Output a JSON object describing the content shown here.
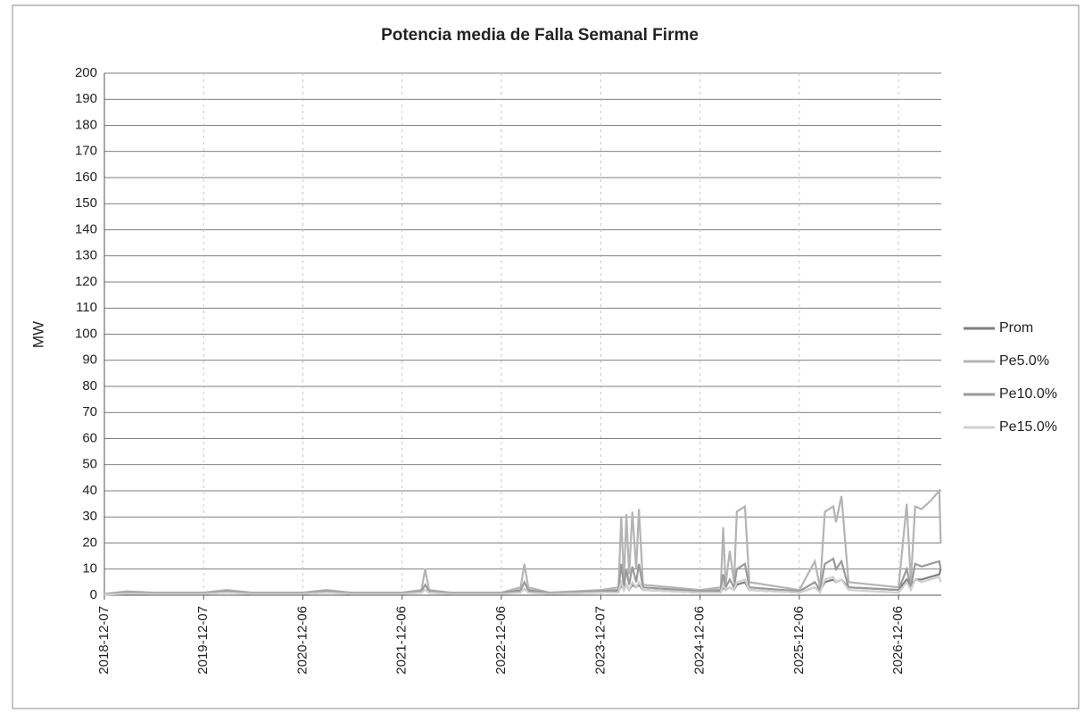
{
  "chart_data": {
    "type": "line",
    "title": "Potencia media de Falla Semanal Firme",
    "y_label": "MW",
    "x": [
      "2018-12-07",
      "2019-03-01",
      "2019-06-01",
      "2019-12-07",
      "2020-03-01",
      "2020-06-01",
      "2020-12-06",
      "2021-03-01",
      "2021-06-01",
      "2021-12-06",
      "2022-02-15",
      "2022-03-01",
      "2022-03-15",
      "2022-06-01",
      "2022-12-06",
      "2023-02-15",
      "2023-03-01",
      "2023-03-15",
      "2023-06-01",
      "2023-12-07",
      "2024-02-10",
      "2024-02-20",
      "2024-03-01",
      "2024-03-10",
      "2024-03-20",
      "2024-04-01",
      "2024-04-15",
      "2024-04-25",
      "2024-05-10",
      "2024-12-06",
      "2025-02-20",
      "2025-03-01",
      "2025-03-10",
      "2025-03-25",
      "2025-04-10",
      "2025-04-20",
      "2025-05-20",
      "2025-06-05",
      "2025-12-06",
      "2026-02-01",
      "2026-02-20",
      "2026-03-10",
      "2026-04-10",
      "2026-04-20",
      "2026-05-10",
      "2026-06-05",
      "2026-12-06",
      "2027-01-05",
      "2027-01-20",
      "2027-02-05",
      "2027-03-01",
      "2027-04-01",
      "2027-05-05",
      "2027-05-10"
    ],
    "series": [
      {
        "name": "Prom",
        "color": "#7f7f7f",
        "values": [
          0.4,
          0.8,
          0.6,
          0.6,
          1,
          0.6,
          0.6,
          1,
          0.6,
          0.6,
          1,
          2,
          1,
          0.6,
          0.6,
          1.2,
          2.5,
          1.2,
          0.6,
          1,
          1.2,
          4,
          2,
          4,
          2,
          4,
          3,
          4,
          2,
          1,
          1.2,
          3,
          2,
          3,
          2,
          4,
          5,
          2,
          1,
          3,
          1.5,
          5,
          6,
          5,
          6,
          3,
          2,
          6,
          3,
          6,
          6,
          7,
          8,
          10
        ]
      },
      {
        "name": "Pe5.0%",
        "color": "#b4b4b4",
        "values": [
          0.5,
          1.5,
          1,
          1,
          2,
          1,
          1,
          2,
          1,
          1,
          2,
          10,
          2,
          1,
          1,
          3,
          12,
          3,
          1,
          2,
          3,
          30,
          5,
          31,
          8,
          32,
          10,
          33,
          4,
          2,
          3,
          26,
          4,
          17,
          5,
          32,
          34,
          5,
          2,
          13,
          3,
          32,
          34,
          28,
          38,
          5,
          3,
          35,
          5,
          34,
          33,
          36,
          40,
          20
        ]
      },
      {
        "name": "Pe10.0%",
        "color": "#9a9a9a",
        "values": [
          0.3,
          1,
          0.8,
          0.8,
          1.5,
          0.8,
          0.8,
          1.5,
          0.8,
          0.8,
          1.5,
          4,
          1.5,
          0.8,
          0.8,
          2,
          5,
          2,
          0.8,
          1.5,
          2,
          12,
          3,
          10,
          4,
          11,
          5,
          12,
          3,
          1.5,
          2,
          8,
          3,
          6,
          3,
          10,
          12,
          3,
          1.5,
          5,
          2,
          12,
          14,
          10,
          13,
          3,
          2,
          10,
          3,
          12,
          11,
          12,
          13,
          10
        ]
      },
      {
        "name": "Pe15.0%",
        "color": "#d0d0d0",
        "values": [
          0.2,
          0.6,
          0.5,
          0.5,
          1,
          0.5,
          0.5,
          1,
          0.5,
          0.5,
          1,
          2,
          1,
          0.5,
          0.5,
          1,
          2.5,
          1,
          0.5,
          1,
          1,
          5,
          2,
          4,
          2,
          5,
          3,
          5,
          2,
          1,
          1,
          4,
          2,
          3,
          2,
          5,
          6,
          2,
          1,
          3,
          1,
          6,
          7,
          5,
          6,
          2,
          1,
          5,
          2,
          6,
          5,
          6,
          7,
          5
        ]
      }
    ],
    "xlim": [
      "2018-12-07",
      "2027-05-12"
    ],
    "xticks": [
      "2018-12-07",
      "2019-12-07",
      "2020-12-06",
      "2021-12-06",
      "2022-12-06",
      "2023-12-07",
      "2024-12-06",
      "2025-12-06",
      "2026-12-06"
    ],
    "ylim": [
      0,
      200
    ],
    "yticks": [
      0,
      10,
      20,
      30,
      40,
      50,
      60,
      70,
      80,
      90,
      100,
      110,
      120,
      130,
      140,
      150,
      160,
      170,
      180,
      190,
      200
    ],
    "grid": true,
    "legend": "right"
  }
}
